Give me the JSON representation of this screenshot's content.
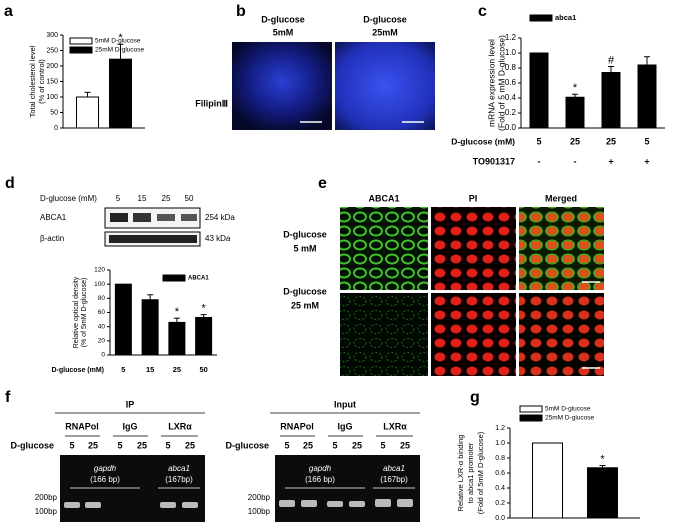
{
  "figure": {
    "panel_labels": [
      "a",
      "b",
      "c",
      "d",
      "e",
      "f",
      "g"
    ],
    "b": {
      "columns": [
        [
          "D-glucose",
          "5mM"
        ],
        [
          "D-glucose",
          "25mM"
        ]
      ],
      "row_label": "FilipinⅢ"
    },
    "d_blot": {
      "xlabel": "D-glucose (mM)",
      "lanes": [
        "5",
        "15",
        "25",
        "50"
      ],
      "rows": [
        {
          "label": "ABCA1",
          "size": "254 kDa"
        },
        {
          "label": "β-actin",
          "size": "43 kDa"
        }
      ]
    },
    "e": {
      "columns": [
        "ABCA1",
        "PI",
        "Merged"
      ],
      "rows": [
        [
          "D-glucose",
          "5 mM"
        ],
        [
          "D-glucose",
          "25 mM"
        ]
      ]
    },
    "f": {
      "row_label": "D-glucose",
      "markers": [
        "200bp",
        "100bp"
      ],
      "gels": [
        {
          "title": "IP",
          "groups": [
            "RNAPol",
            "IgG",
            "LXRα"
          ],
          "lanes": [
            "5",
            "25",
            "5",
            "25",
            "5",
            "25"
          ],
          "genes": [
            [
              "gapdh",
              "(166 bp)"
            ],
            [
              "abca1",
              "(167bp)"
            ]
          ]
        },
        {
          "title": "Input",
          "groups": [
            "RNAPol",
            "IgG",
            "LXRα"
          ],
          "lanes": [
            "5",
            "25",
            "5",
            "25",
            "5",
            "25"
          ],
          "genes": [
            [
              "gapdh",
              "(166 bp)"
            ],
            [
              "abca1",
              "(167bp)"
            ]
          ]
        }
      ]
    }
  },
  "chart_data": [
    {
      "type": "bar",
      "ylabel": [
        "Total cholesterol level",
        "(% of control)"
      ],
      "categories": [
        null
      ],
      "ylim": [
        0,
        300
      ],
      "yticks": [
        0,
        50,
        100,
        150,
        200,
        250,
        300
      ],
      "series": [
        {
          "name": "5mM D-glucose",
          "color": "#ffffff",
          "values": [
            100
          ],
          "errors": [
            15
          ],
          "labels": [
            null
          ]
        },
        {
          "name": "25mM D-glucose",
          "color": "#000000",
          "values": [
            222
          ],
          "errors": [
            48
          ],
          "labels": [
            "*"
          ]
        }
      ]
    },
    {
      "type": "bar",
      "ylabel": [
        "mRNA expression level",
        "(Fold of 5 mM D-glucose)"
      ],
      "xlabel": "D-glucose (mM)",
      "categories": [
        "5",
        "25",
        "25",
        "5"
      ],
      "rows": [
        {
          "label": "TO901317",
          "values": [
            "-",
            "-",
            "+",
            "+"
          ]
        }
      ],
      "ylim": [
        0,
        1.2
      ],
      "yticks": [
        {
          "value": 0,
          "label": "0.0"
        },
        0.2,
        0.4,
        0.6,
        0.8,
        {
          "value": 1,
          "label": "1.0"
        },
        1.2
      ],
      "series": [
        {
          "name": "abca1",
          "color": "#000000",
          "values": [
            1.0,
            0.41,
            0.74,
            0.84
          ],
          "errors": [
            null,
            0.04,
            0.08,
            0.11
          ],
          "labels": [
            null,
            "*",
            "#",
            null
          ]
        }
      ]
    },
    {
      "type": "bar",
      "ylabel": [
        "Relative optical density",
        "(% of 5mM D-glucose)"
      ],
      "xlabel": "D-glucose (mM)",
      "categories": [
        "5",
        "15",
        "25",
        "50"
      ],
      "ylim": [
        0,
        120
      ],
      "yticks": [
        0,
        20,
        40,
        60,
        80,
        100,
        120
      ],
      "series": [
        {
          "name": "ABCA1",
          "color": "#000000",
          "values": [
            100,
            78,
            46,
            53
          ],
          "errors": [
            null,
            7,
            6,
            4
          ],
          "labels": [
            null,
            null,
            "*",
            "*"
          ]
        }
      ]
    },
    {
      "type": "bar",
      "ylabel": [
        "Relative LXR-α binding",
        "to abca1 promoter",
        "(Fold of 5mM D-glucose)"
      ],
      "categories": [
        null
      ],
      "ylim": [
        0,
        1.2
      ],
      "yticks": [
        {
          "value": 0,
          "label": "0.0"
        },
        0.2,
        0.4,
        0.6,
        0.8,
        {
          "value": 1,
          "label": "1.0"
        },
        1.2
      ],
      "series": [
        {
          "name": "5mM D-glucose",
          "color": "#ffffff",
          "values": [
            1.0
          ],
          "errors": [
            null
          ],
          "labels": [
            null
          ]
        },
        {
          "name": "25mM D-glucose",
          "color": "#000000",
          "values": [
            0.67
          ],
          "errors": [
            0.03
          ],
          "labels": [
            "*"
          ]
        }
      ]
    }
  ]
}
